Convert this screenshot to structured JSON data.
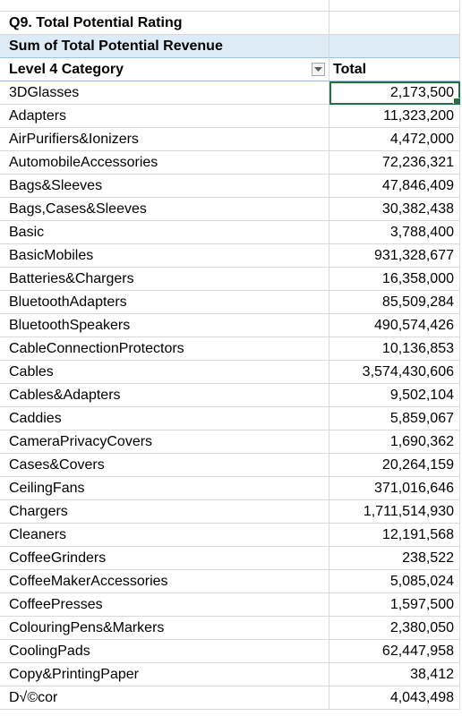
{
  "title_row": {
    "text": "Q9. Total Potential Rating"
  },
  "pivot": {
    "measure_label": "Sum of Total Potential Revenue",
    "row_header": "Level 4 Category",
    "value_header": "Total",
    "accent_header_bg": "#ddebf7",
    "selection_color": "#217346",
    "rows": [
      {
        "category": "3DGlasses",
        "total": "2,173,500"
      },
      {
        "category": "Adapters",
        "total": "11,323,200"
      },
      {
        "category": "AirPurifiers&Ionizers",
        "total": "4,472,000"
      },
      {
        "category": "AutomobileAccessories",
        "total": "72,236,321"
      },
      {
        "category": "Bags&Sleeves",
        "total": "47,846,409"
      },
      {
        "category": "Bags,Cases&Sleeves",
        "total": "30,382,438"
      },
      {
        "category": "Basic",
        "total": "3,788,400"
      },
      {
        "category": "BasicMobiles",
        "total": "931,328,677"
      },
      {
        "category": "Batteries&Chargers",
        "total": "16,358,000"
      },
      {
        "category": "BluetoothAdapters",
        "total": "85,509,284"
      },
      {
        "category": "BluetoothSpeakers",
        "total": "490,574,426"
      },
      {
        "category": "CableConnectionProtectors",
        "total": "10,136,853"
      },
      {
        "category": "Cables",
        "total": "3,574,430,606"
      },
      {
        "category": "Cables&Adapters",
        "total": "9,502,104"
      },
      {
        "category": "Caddies",
        "total": "5,859,067"
      },
      {
        "category": "CameraPrivacyCovers",
        "total": "1,690,362"
      },
      {
        "category": "Cases&Covers",
        "total": "20,264,159"
      },
      {
        "category": "CeilingFans",
        "total": "371,016,646"
      },
      {
        "category": "Chargers",
        "total": "1,711,514,930"
      },
      {
        "category": "Cleaners",
        "total": "12,191,568"
      },
      {
        "category": "CoffeeGrinders",
        "total": "238,522"
      },
      {
        "category": "CoffeeMakerAccessories",
        "total": "5,085,024"
      },
      {
        "category": "CoffeePresses",
        "total": "1,597,500"
      },
      {
        "category": "ColouringPens&Markers",
        "total": "2,380,050"
      },
      {
        "category": "CoolingPads",
        "total": "62,447,958"
      },
      {
        "category": "Copy&PrintingPaper",
        "total": "38,412"
      },
      {
        "category": "D√©cor",
        "total": "4,043,498"
      }
    ]
  },
  "icons": {
    "filter": "dropdown-filter-icon"
  }
}
